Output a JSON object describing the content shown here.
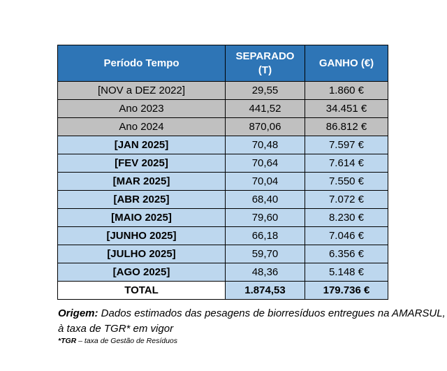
{
  "table": {
    "headers": [
      "Período Tempo",
      "SEPARADO (T)",
      "GANHO (€)"
    ],
    "header_lines": {
      "separado_line1": "SEPARADO",
      "separado_line2": "(T)"
    },
    "rows": [
      {
        "period": "[NOV a DEZ 2022]",
        "separado": "29,55",
        "ganho": "1.860 €",
        "style": "gray"
      },
      {
        "period": "Ano 2023",
        "separado": "441,52",
        "ganho": "34.451 €",
        "style": "gray"
      },
      {
        "period": "Ano 2024",
        "separado": "870,06",
        "ganho": "86.812 €",
        "style": "gray"
      },
      {
        "period": "[JAN 2025]",
        "separado": "70,48",
        "ganho": "7.597 €",
        "style": "blue"
      },
      {
        "period": "[FEV 2025]",
        "separado": "70,64",
        "ganho": "7.614 €",
        "style": "blue"
      },
      {
        "period": "[MAR 2025]",
        "separado": "70,04",
        "ganho": "7.550 €",
        "style": "blue"
      },
      {
        "period": "[ABR 2025]",
        "separado": "68,40",
        "ganho": "7.072 €",
        "style": "blue"
      },
      {
        "period": "[MAIO 2025]",
        "separado": "79,60",
        "ganho": "8.230 €",
        "style": "blue"
      },
      {
        "period": "[JUNHO 2025]",
        "separado": "66,18",
        "ganho": "7.046 €",
        "style": "blue"
      },
      {
        "period": "[JULHO 2025]",
        "separado": "59,70",
        "ganho": "6.356 €",
        "style": "blue"
      },
      {
        "period": "[AGO 2025]",
        "separado": "48,36",
        "ganho": "5.148 €",
        "style": "blue"
      }
    ],
    "total": {
      "label": "TOTAL",
      "separado": "1.874,53",
      "ganho": "179.736 €"
    }
  },
  "note": {
    "label": "Origem:",
    "text": " Dados estimados das pesagens de biorresíduos entregues na AMARSUL, à taxa de TGR* em vigor"
  },
  "footnote": {
    "label": "*TGR",
    "text": " – taxa de Gestão de Resíduos"
  },
  "colors": {
    "header_bg": "#2e75b6",
    "gray_row": "#c0c0c0",
    "blue_row": "#bdd7ee"
  }
}
